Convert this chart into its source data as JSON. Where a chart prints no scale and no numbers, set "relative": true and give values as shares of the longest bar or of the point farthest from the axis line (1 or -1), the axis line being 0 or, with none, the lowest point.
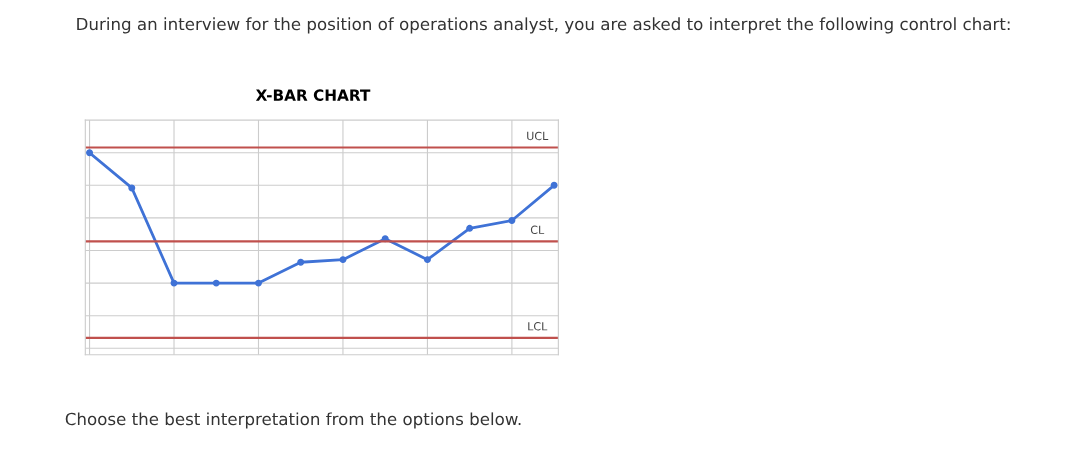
{
  "chart_data": {
    "type": "line",
    "title": "X-BAR CHART",
    "relative": true,
    "categories": [
      null,
      null,
      null,
      null,
      null,
      null,
      null,
      null,
      null,
      null,
      null,
      null
    ],
    "series": [
      {
        "color": "#3f72d6",
        "values": [
          1,
          0.73,
          0,
          0,
          0,
          0.16,
          0.18,
          0.34,
          0.18,
          0.42,
          0.48,
          0.75
        ]
      }
    ],
    "marker": "circle",
    "grid": true,
    "ref_lines": [
      {
        "axis": "y",
        "value": 1.04,
        "label": "UCL",
        "color": "#c0504d"
      },
      {
        "axis": "y",
        "value": 0.32,
        "label": "CL",
        "color": "#c0504d"
      },
      {
        "axis": "y",
        "value": -0.42,
        "label": "LCL",
        "color": "#c0504d"
      }
    ],
    "annotations": [
      "During an interview for the position of operations analyst, you are asked to interpret the following control chart:",
      "Choose the best interpretation from the options below."
    ]
  }
}
